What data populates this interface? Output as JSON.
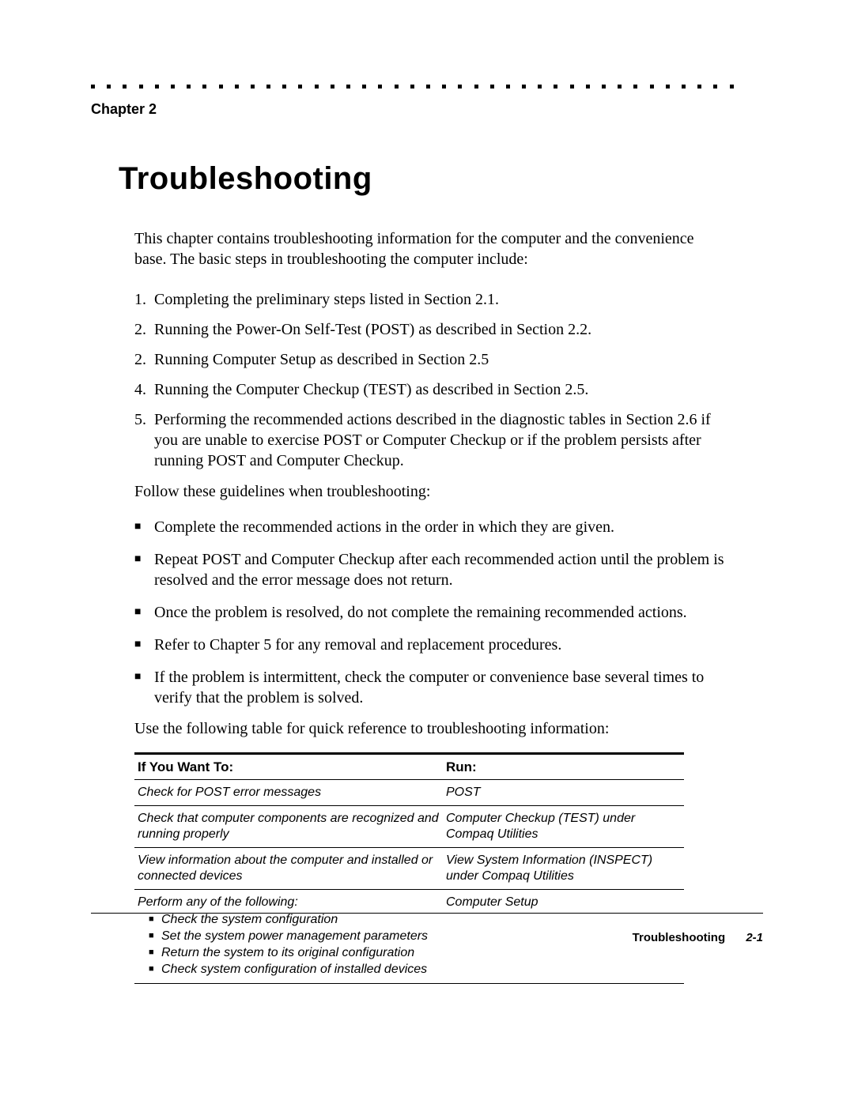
{
  "chapter_label": "Chapter 2",
  "title": "Troubleshooting",
  "intro": "This chapter contains troubleshooting information for the computer and the convenience base. The basic steps in troubleshooting the computer include:",
  "numbered": [
    {
      "n": "1.",
      "t": "Completing the preliminary steps listed in Section 2.1."
    },
    {
      "n": "2.",
      "t": "Running the Power-On Self-Test (POST) as described in Section 2.2."
    },
    {
      "n": "2.",
      "t": "Running Computer Setup as described in Section 2.5"
    },
    {
      "n": "4.",
      "t": "Running the Computer Checkup (TEST) as described in Section 2.5."
    },
    {
      "n": "5.",
      "t": "Performing the recommended actions described in the diagnostic tables in Section 2.6 if you are unable to exercise POST or Computer Checkup or if the problem persists after running POST and Computer Checkup."
    }
  ],
  "guidelines_lead": "Follow these guidelines when troubleshooting:",
  "bullets": [
    "Complete the recommended actions in the order in which they are given.",
    "Repeat POST and Computer Checkup after each recommended action until the problem is resolved and the error message does not return.",
    "Once the problem is resolved, do not complete the remaining recommended actions.",
    "Refer to Chapter 5 for any removal and replacement procedures.",
    "If the problem is intermittent, check the computer or convenience base several times to verify that the problem is solved."
  ],
  "table_lead": "Use the following table for quick reference to troubleshooting information:",
  "table": {
    "head_left": "If You Want To:",
    "head_right": "Run:",
    "rows": [
      {
        "left": "Check for POST error messages",
        "right": "POST"
      },
      {
        "left": "Check that computer components are recognized and running properly",
        "right": "Computer Checkup (TEST) under Compaq Utilities"
      },
      {
        "left": "View information about the computer and installed or connected devices",
        "right": "View System Information (INSPECT) under Compaq Utilities"
      },
      {
        "left_lead": "Perform any of the following:",
        "left_items": [
          "Check the system configuration",
          "Set the system power management parameters",
          "Return the system to its original configuration",
          "Check system configuration of installed devices"
        ],
        "right": "Computer Setup"
      }
    ]
  },
  "footer_title": "Troubleshooting",
  "footer_page": "2-1",
  "dot_count": 41
}
